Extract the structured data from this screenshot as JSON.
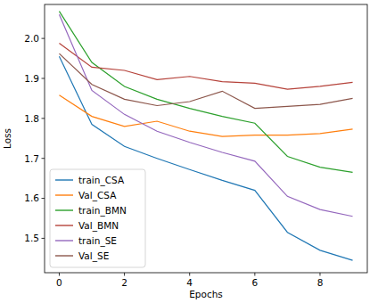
{
  "chart_data": {
    "type": "line",
    "x_label": "Epochs",
    "y_label": "Loss",
    "x": [
      0,
      1,
      2,
      3,
      4,
      5,
      6,
      7,
      8,
      9
    ],
    "xlim": [
      -0.45,
      9.45
    ],
    "xticks": [
      0,
      2,
      4,
      6,
      8
    ],
    "ylim": [
      1.414,
      2.085
    ],
    "yticks": [
      1.5,
      1.6,
      1.7,
      1.8,
      1.9,
      {
        "value": 2,
        "label": "2.0"
      }
    ],
    "grid": false,
    "legend": "lower left",
    "series": [
      {
        "name": "train_CSA",
        "color": "#1f77b4",
        "values": [
          1.955,
          1.785,
          1.73,
          1.7,
          1.672,
          1.645,
          1.62,
          1.515,
          1.47,
          1.445
        ]
      },
      {
        "name": "Val_CSA",
        "color": "#ff7f0e",
        "values": [
          1.858,
          1.805,
          1.78,
          1.793,
          1.768,
          1.755,
          1.758,
          1.758,
          1.762,
          1.773
        ]
      },
      {
        "name": "train_BMN",
        "color": "#2ca02c",
        "values": [
          2.068,
          1.94,
          1.88,
          1.848,
          1.825,
          1.805,
          1.788,
          1.705,
          1.678,
          1.665
        ]
      },
      {
        "name": "Val_BMN",
        "color": "#b5423a",
        "values": [
          1.988,
          1.928,
          1.92,
          1.897,
          1.905,
          1.892,
          1.888,
          1.873,
          1.88,
          1.89
        ]
      },
      {
        "name": "train_SE",
        "color": "#9467bd",
        "values": [
          2.06,
          1.87,
          1.81,
          1.768,
          1.74,
          1.715,
          1.693,
          1.605,
          1.572,
          1.555
        ]
      },
      {
        "name": "Val_SE",
        "color": "#8c564b",
        "values": [
          1.962,
          1.885,
          1.848,
          1.832,
          1.842,
          1.868,
          1.825,
          1.83,
          1.835,
          1.85
        ]
      }
    ]
  }
}
